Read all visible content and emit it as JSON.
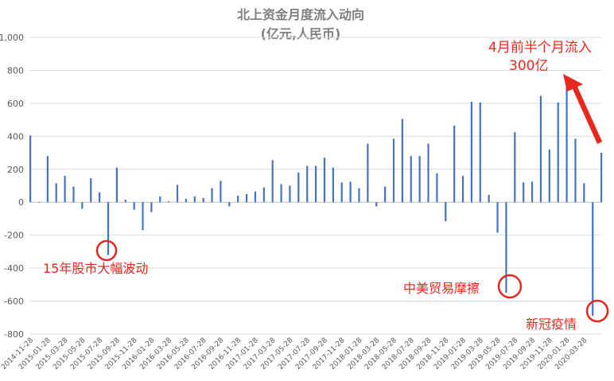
{
  "chart_data": {
    "type": "bar",
    "title": "北上资金月度流入动向",
    "subtitle": "(亿元,人民币)",
    "xlabel": "",
    "ylabel": "",
    "ylim": [
      -800,
      1000
    ],
    "yticks": [
      1000,
      800,
      600,
      400,
      200,
      0,
      -200,
      -400,
      -600,
      -800
    ],
    "ytick_labels": [
      "1,000",
      "800",
      "600",
      "400",
      "200",
      "0",
      "-200",
      "-400",
      "-600",
      "-800"
    ],
    "grid": true,
    "bar_color": "#4472c4",
    "x_tick_labels": [
      "2014-11-28",
      "2015-01-28",
      "2015-03-28",
      "2015-05-28",
      "2015-07-28",
      "2015-09-28",
      "2015-11-28",
      "2016-01-28",
      "2016-03-28",
      "2016-05-28",
      "2016-07-28",
      "2016-09-28",
      "2016-11-28",
      "2017-01-28",
      "2017-03-28",
      "2017-05-28",
      "2017-07-28",
      "2017-09-28",
      "2017-11-28",
      "2018-01-28",
      "2018-03-28",
      "2018-05-28",
      "2018-07-28",
      "2018-09-28",
      "2018-11-28",
      "2019-01-28",
      "2019-03-28",
      "2019-05-28",
      "2019-07-28",
      "2019-09-28",
      "2019-11-28",
      "2020-01-28",
      "2020-03-28"
    ],
    "values": [
      405,
      0,
      280,
      115,
      160,
      95,
      -40,
      145,
      60,
      -320,
      210,
      15,
      -45,
      -170,
      -60,
      35,
      5,
      105,
      20,
      35,
      25,
      85,
      130,
      -25,
      40,
      50,
      65,
      90,
      255,
      110,
      100,
      180,
      220,
      220,
      270,
      210,
      120,
      125,
      85,
      355,
      -25,
      95,
      385,
      505,
      280,
      280,
      355,
      175,
      -115,
      465,
      160,
      610,
      605,
      45,
      -185,
      -550,
      425,
      120,
      125,
      645,
      320,
      605,
      730,
      385,
      115,
      -690,
      300
    ]
  },
  "annotations": {
    "april": {
      "line1": "4月前半个月流入",
      "line2": "300亿"
    },
    "crash2015": "15年股市大幅波动",
    "trade_war": "中美贸易摩擦",
    "covid": "新冠疫情"
  },
  "colors": {
    "annotation": "#e8281e",
    "grid": "#d9d9d9",
    "axis": "#bfbfbf",
    "text": "#595959"
  }
}
